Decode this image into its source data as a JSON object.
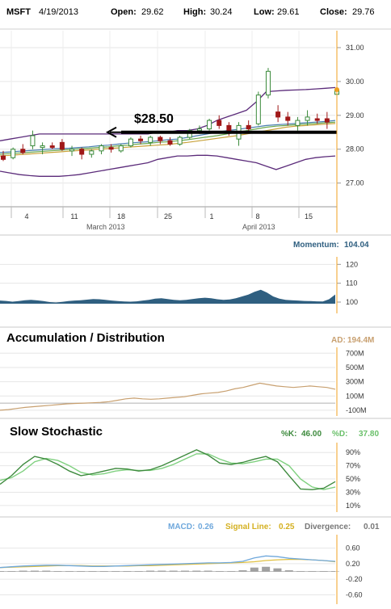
{
  "header": {
    "symbol": "MSFT",
    "date": "4/19/2013",
    "open_label": "Open:",
    "open": "29.62",
    "high_label": "High:",
    "high": "30.24",
    "low_label": "Low:",
    "low": "29.61",
    "close_label": "Close:",
    "close": "29.76"
  },
  "annotation": {
    "text": "$28.50",
    "value": 28.5
  },
  "colors": {
    "up": "#3a8a3a",
    "down": "#a01818",
    "band": "#5b2b7a",
    "ma_orange": "#c9a23a",
    "ma_blue": "#4a7fb0",
    "ma_green": "#6aa84f",
    "momentum": "#2f5f80",
    "ad": "#c8a070",
    "k": "#3d8a3d",
    "d": "#7fd07f",
    "macd": "#6fa8dc",
    "signal": "#e0c040",
    "divergence": "#777777",
    "accent": "#f0a020"
  },
  "chart_data": [
    {
      "type": "candlestick",
      "title": "",
      "x_tick_labels": [
        "4",
        "11",
        "18",
        "25",
        "1",
        "8",
        "15"
      ],
      "month_labels": [
        "March 2013",
        "April 2013"
      ],
      "y_ticks": [
        "31.00",
        "30.00",
        "29.00",
        "28.00",
        "27.00"
      ],
      "ylim": [
        26.3,
        31.5
      ],
      "candles": [
        {
          "o": 27.8,
          "h": 27.95,
          "l": 27.65,
          "c": 27.7
        },
        {
          "o": 27.75,
          "h": 28.05,
          "l": 27.7,
          "c": 28.0
        },
        {
          "o": 28.0,
          "h": 28.15,
          "l": 27.85,
          "c": 27.9
        },
        {
          "o": 28.1,
          "h": 28.55,
          "l": 28.0,
          "c": 28.4
        },
        {
          "o": 28.05,
          "h": 28.2,
          "l": 27.85,
          "c": 28.1
        },
        {
          "o": 28.1,
          "h": 28.2,
          "l": 28.0,
          "c": 28.05
        },
        {
          "o": 28.2,
          "h": 28.3,
          "l": 27.95,
          "c": 28.0
        },
        {
          "o": 27.95,
          "h": 28.1,
          "l": 27.8,
          "c": 28.0
        },
        {
          "o": 28.0,
          "h": 28.05,
          "l": 27.7,
          "c": 27.85
        },
        {
          "o": 27.85,
          "h": 28.0,
          "l": 27.75,
          "c": 27.95
        },
        {
          "o": 27.95,
          "h": 28.15,
          "l": 27.85,
          "c": 28.1
        },
        {
          "o": 28.05,
          "h": 28.15,
          "l": 27.9,
          "c": 28.0
        },
        {
          "o": 27.95,
          "h": 28.15,
          "l": 27.9,
          "c": 28.1
        },
        {
          "o": 28.1,
          "h": 28.35,
          "l": 28.05,
          "c": 28.3
        },
        {
          "o": 28.3,
          "h": 28.4,
          "l": 28.15,
          "c": 28.25
        },
        {
          "o": 28.2,
          "h": 28.4,
          "l": 28.1,
          "c": 28.35
        },
        {
          "o": 28.35,
          "h": 28.4,
          "l": 28.15,
          "c": 28.25
        },
        {
          "o": 28.25,
          "h": 28.35,
          "l": 28.1,
          "c": 28.15
        },
        {
          "o": 28.15,
          "h": 28.4,
          "l": 28.1,
          "c": 28.35
        },
        {
          "o": 28.35,
          "h": 28.6,
          "l": 28.3,
          "c": 28.55
        },
        {
          "o": 28.55,
          "h": 28.7,
          "l": 28.45,
          "c": 28.6
        },
        {
          "o": 28.6,
          "h": 28.9,
          "l": 28.55,
          "c": 28.85
        },
        {
          "o": 28.85,
          "h": 29.0,
          "l": 28.6,
          "c": 28.7
        },
        {
          "o": 28.7,
          "h": 28.8,
          "l": 28.4,
          "c": 28.5
        },
        {
          "o": 28.3,
          "h": 28.8,
          "l": 28.1,
          "c": 28.7
        },
        {
          "o": 28.7,
          "h": 28.85,
          "l": 28.5,
          "c": 28.6
        },
        {
          "o": 28.75,
          "h": 29.7,
          "l": 28.7,
          "c": 29.6
        },
        {
          "o": 29.6,
          "h": 30.4,
          "l": 29.5,
          "c": 30.3
        },
        {
          "o": 29.1,
          "h": 29.3,
          "l": 28.8,
          "c": 28.95
        },
        {
          "o": 28.95,
          "h": 29.1,
          "l": 28.7,
          "c": 28.85
        },
        {
          "o": 28.7,
          "h": 28.95,
          "l": 28.55,
          "c": 28.85
        },
        {
          "o": 28.85,
          "h": 29.15,
          "l": 28.7,
          "c": 28.95
        },
        {
          "o": 28.9,
          "h": 29.05,
          "l": 28.75,
          "c": 28.85
        },
        {
          "o": 28.9,
          "h": 29.1,
          "l": 28.6,
          "c": 28.8
        },
        {
          "o": 29.62,
          "h": 30.24,
          "l": 29.61,
          "c": 29.76
        }
      ],
      "bollinger_upper": [
        28.25,
        28.3,
        28.35,
        28.4,
        28.45,
        28.45,
        28.45,
        28.45,
        28.45,
        28.45,
        28.45,
        28.45,
        28.45,
        28.45,
        28.45,
        28.45,
        28.5,
        28.5,
        28.55,
        28.55,
        28.6,
        28.7,
        28.85,
        28.95,
        29.05,
        29.15,
        29.4,
        29.7,
        29.72,
        29.74,
        29.75,
        29.76,
        29.78,
        29.8,
        29.82
      ],
      "bollinger_lower": [
        27.35,
        27.3,
        27.25,
        27.22,
        27.2,
        27.2,
        27.2,
        27.22,
        27.25,
        27.3,
        27.35,
        27.4,
        27.45,
        27.5,
        27.55,
        27.6,
        27.7,
        27.75,
        27.8,
        27.8,
        27.82,
        27.82,
        27.8,
        27.75,
        27.7,
        27.65,
        27.6,
        27.5,
        27.4,
        27.5,
        27.6,
        27.7,
        27.75,
        27.78,
        27.8
      ],
      "ma_1": [
        27.9,
        27.92,
        27.94,
        27.96,
        27.98,
        28.0,
        28.02,
        28.03,
        28.05,
        28.07,
        28.1,
        28.12,
        28.15,
        28.18,
        28.2,
        28.22,
        28.25,
        28.28,
        28.3,
        28.35,
        28.4,
        28.45,
        28.5,
        28.55,
        28.58,
        28.62,
        28.66,
        28.7,
        28.72,
        28.74,
        28.76,
        28.78,
        28.8,
        28.82,
        28.85
      ],
      "ma_2": [
        27.85,
        27.87,
        27.89,
        27.91,
        27.93,
        27.95,
        27.97,
        27.99,
        28.01,
        28.03,
        28.05,
        28.07,
        28.1,
        28.12,
        28.15,
        28.17,
        28.2,
        28.22,
        28.25,
        28.28,
        28.32,
        28.36,
        28.4,
        28.45,
        28.5,
        28.55,
        28.6,
        28.65,
        28.68,
        28.7,
        28.72,
        28.74,
        28.76,
        28.78,
        28.8
      ],
      "ma_3": [
        27.8,
        27.82,
        27.84,
        27.86,
        27.88,
        27.9,
        27.92,
        27.94,
        27.96,
        27.98,
        28.0,
        28.02,
        28.04,
        28.06,
        28.08,
        28.1,
        28.12,
        28.14,
        28.17,
        28.2,
        28.24,
        28.28,
        28.32,
        28.36,
        28.4,
        28.45,
        28.5,
        28.55,
        28.6,
        28.65,
        28.68,
        28.7,
        28.72,
        28.74,
        28.76
      ],
      "hline": 28.5
    },
    {
      "type": "area",
      "title": "Momentum",
      "label": "Momentum:",
      "current": "104.04",
      "y_ticks": [
        "120",
        "110",
        "100"
      ],
      "ylim": [
        94,
        124
      ],
      "values": [
        100.8,
        100.6,
        100.2,
        100.5,
        101.0,
        101.2,
        100.9,
        100.5,
        100.0,
        99.8,
        100.1,
        100.5,
        100.8,
        101.0,
        101.3,
        101.6,
        101.5,
        101.2,
        100.8,
        100.5,
        100.3,
        100.2,
        100.4,
        100.8,
        101.2,
        101.8,
        102.0,
        101.6,
        101.2,
        101.0,
        101.2,
        101.6,
        102.0,
        102.3,
        102.0,
        101.5,
        101.2,
        101.4,
        102.0,
        103.0,
        104.0,
        105.5,
        106.5,
        105.0,
        103.0,
        101.8,
        101.2,
        101.0,
        100.8,
        100.6,
        100.5,
        100.4,
        100.3,
        101.5,
        104.04
      ]
    },
    {
      "type": "line",
      "title": "Accumulation / Distribution",
      "label": "AD:",
      "current": "194.4M",
      "y_ticks": [
        "700M",
        "500M",
        "300M",
        "100M",
        "-100M"
      ],
      "ylim": [
        -180,
        760
      ],
      "values": [
        -100,
        -90,
        -75,
        -60,
        -50,
        -40,
        -30,
        -20,
        -10,
        -5,
        0,
        5,
        10,
        20,
        40,
        60,
        70,
        60,
        55,
        60,
        70,
        80,
        90,
        110,
        130,
        140,
        150,
        170,
        200,
        220,
        250,
        280,
        260,
        240,
        230,
        220,
        230,
        240,
        230,
        220,
        194.4
      ]
    },
    {
      "type": "line",
      "title": "Slow Stochastic",
      "k_label": "%K:",
      "k_current": "46.00",
      "d_label": "%D:",
      "d_current": "37.80",
      "y_ticks": [
        "90%",
        "70%",
        "50%",
        "30%",
        "10%"
      ],
      "ylim": [
        0,
        100
      ],
      "k": [
        42,
        55,
        72,
        84,
        80,
        72,
        62,
        55,
        58,
        62,
        66,
        65,
        62,
        64,
        70,
        78,
        86,
        94,
        86,
        74,
        72,
        75,
        80,
        84,
        76,
        55,
        35,
        34,
        36,
        46
      ],
      "d": [
        48,
        52,
        62,
        76,
        81,
        78,
        70,
        60,
        56,
        58,
        62,
        64,
        63,
        63,
        66,
        72,
        80,
        88,
        88,
        80,
        74,
        73,
        76,
        80,
        80,
        70,
        50,
        38,
        34,
        37.8
      ]
    },
    {
      "type": "line",
      "title": "MACD",
      "macd_label": "MACD:",
      "macd_current": "0.26",
      "signal_label": "Signal Line:",
      "signal_current": "0.25",
      "div_label": "Divergence:",
      "div_current": "0.01",
      "y_ticks": [
        "0.60",
        "0.20",
        "-0.20",
        "-0.60"
      ],
      "ylim": [
        -0.78,
        0.78
      ],
      "macd": [
        0.1,
        0.12,
        0.14,
        0.15,
        0.16,
        0.16,
        0.15,
        0.14,
        0.13,
        0.13,
        0.14,
        0.15,
        0.16,
        0.17,
        0.18,
        0.19,
        0.2,
        0.21,
        0.22,
        0.22,
        0.23,
        0.26,
        0.35,
        0.4,
        0.38,
        0.34,
        0.32,
        0.3,
        0.28,
        0.26
      ],
      "signal": [
        0.1,
        0.11,
        0.12,
        0.13,
        0.14,
        0.15,
        0.15,
        0.15,
        0.14,
        0.14,
        0.14,
        0.14,
        0.15,
        0.15,
        0.16,
        0.17,
        0.18,
        0.19,
        0.2,
        0.21,
        0.22,
        0.23,
        0.25,
        0.28,
        0.3,
        0.31,
        0.31,
        0.3,
        0.28,
        0.25
      ],
      "divergence": [
        0,
        0.01,
        0.02,
        0.02,
        0.02,
        0.01,
        0,
        -0.01,
        -0.01,
        -0.01,
        0,
        0.01,
        0.01,
        0.02,
        0.02,
        0.02,
        0.02,
        0.02,
        0.02,
        0.01,
        0.01,
        0.03,
        0.1,
        0.12,
        0.08,
        0.03,
        0.01,
        0,
        0,
        0.01
      ]
    }
  ]
}
